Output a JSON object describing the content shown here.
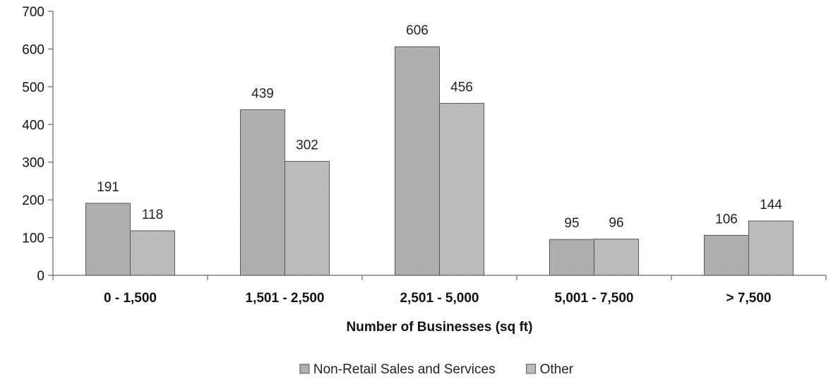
{
  "chart_data": {
    "type": "bar",
    "title": "",
    "xlabel": "Number of Businesses (sq ft)",
    "ylabel": "",
    "categories": [
      "0 - 1,500",
      "1,501 - 2,500",
      "2,501 - 5,000",
      "5,001 - 7,500",
      "> 7,500"
    ],
    "series": [
      {
        "name": "Non-Retail Sales and Services",
        "values": [
          191,
          439,
          606,
          95,
          106
        ],
        "color": "#b4b4b4"
      },
      {
        "name": "Other",
        "values": [
          118,
          302,
          456,
          96,
          144
        ],
        "color": "#c2c2c2"
      }
    ],
    "ylim": [
      0,
      700
    ],
    "yticks": [
      0,
      100,
      200,
      300,
      400,
      500,
      600,
      700
    ],
    "grid": false,
    "legend_position": "bottom"
  }
}
